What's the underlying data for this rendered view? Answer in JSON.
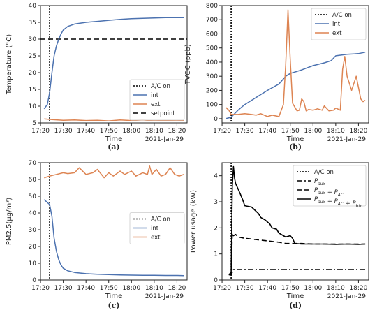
{
  "chart_data": [
    {
      "panel_caption": "(a)",
      "type": "line",
      "xlabel": "Time",
      "ylabel": "Temperature (°C)",
      "date_label": "2021-Jan-29",
      "xlim": [
        17.333,
        18.408
      ],
      "ylim": [
        5,
        40
      ],
      "xticks": [
        "17:20",
        "17:30",
        "17:40",
        "17:50",
        "18:00",
        "18:10",
        "18:20"
      ],
      "yticks": [
        "5",
        "10",
        "15",
        "20",
        "25",
        "30",
        "35",
        "40"
      ],
      "grid": false,
      "legend": {
        "position": "bottom-right",
        "entries": [
          "A/C on",
          "int",
          "ext",
          "setpoint"
        ]
      },
      "ac_on": 17.4,
      "hlines": [
        {
          "y": 30,
          "name": "setpoint",
          "color": "#000000",
          "style": "dashed"
        }
      ],
      "series": [
        {
          "name": "int",
          "color": "#4C72B0",
          "x": [
            17.36,
            17.383,
            17.4,
            17.417,
            17.433,
            17.45,
            17.467,
            17.483,
            17.5,
            17.533,
            17.583,
            17.667,
            17.75,
            17.833,
            17.917,
            18.0,
            18.083,
            18.167,
            18.25,
            18.333,
            18.383
          ],
          "y": [
            9.2,
            10.5,
            14,
            20,
            25,
            28,
            30,
            31.5,
            32.7,
            33.8,
            34.5,
            35,
            35.3,
            35.6,
            35.9,
            36.1,
            36.2,
            36.3,
            36.4,
            36.4,
            36.4
          ]
        },
        {
          "name": "ext",
          "color": "#DD8452",
          "x": [
            17.36,
            17.417,
            17.5,
            17.583,
            17.667,
            17.75,
            17.833,
            17.917,
            18.0,
            18.083,
            18.167,
            18.25,
            18.333,
            18.383
          ],
          "y": [
            6.2,
            6.0,
            5.8,
            5.9,
            5.7,
            5.8,
            5.6,
            5.9,
            5.7,
            5.9,
            5.6,
            5.8,
            5.6,
            5.8
          ]
        }
      ]
    },
    {
      "panel_caption": "(b)",
      "type": "line",
      "xlabel": "Time",
      "ylabel": "TVOC (ppb)",
      "date_label": "2021-Jan-29",
      "xlim": [
        17.333,
        18.408
      ],
      "ylim": [
        -30,
        800
      ],
      "xticks": [
        "17:20",
        "17:30",
        "17:40",
        "17:50",
        "18:00",
        "18:10",
        "18:20"
      ],
      "yticks": [
        "0",
        "100",
        "200",
        "300",
        "400",
        "500",
        "600",
        "700",
        "800"
      ],
      "grid": false,
      "legend": {
        "position": "top-right",
        "entries": [
          "A/C on",
          "int",
          "ext"
        ]
      },
      "ac_on": 17.4,
      "hlines": [],
      "series": [
        {
          "name": "int",
          "color": "#4C72B0",
          "x": [
            17.36,
            17.4,
            17.45,
            17.5,
            17.583,
            17.667,
            17.75,
            17.8,
            17.833,
            17.917,
            18.0,
            18.083,
            18.133,
            18.167,
            18.25,
            18.333,
            18.383
          ],
          "y": [
            0,
            10,
            60,
            100,
            150,
            200,
            245,
            300,
            320,
            345,
            375,
            395,
            410,
            445,
            455,
            460,
            470
          ]
        },
        {
          "name": "ext",
          "color": "#DD8452",
          "x": [
            17.36,
            17.383,
            17.4,
            17.45,
            17.5,
            17.55,
            17.583,
            17.617,
            17.667,
            17.7,
            17.75,
            17.783,
            17.8,
            17.817,
            17.833,
            17.85,
            17.883,
            17.9,
            17.917,
            17.933,
            17.95,
            17.967,
            18.0,
            18.033,
            18.067,
            18.083,
            18.117,
            18.15,
            18.167,
            18.2,
            18.217,
            18.233,
            18.25,
            18.283,
            18.317,
            18.35,
            18.367,
            18.383
          ],
          "y": [
            80,
            60,
            30,
            30,
            35,
            30,
            25,
            35,
            15,
            25,
            15,
            100,
            380,
            770,
            420,
            110,
            55,
            60,
            140,
            120,
            55,
            65,
            60,
            70,
            60,
            90,
            55,
            60,
            75,
            60,
            350,
            440,
            300,
            200,
            300,
            140,
            120,
            130
          ]
        }
      ]
    },
    {
      "panel_caption": "(c)",
      "type": "line",
      "xlabel": "Time",
      "ylabel": "PM2.5(μg/m³)",
      "date_label": "2021-Jan-29",
      "xlim": [
        17.333,
        18.408
      ],
      "ylim": [
        0,
        70
      ],
      "xticks": [
        "17:20",
        "17:30",
        "17:40",
        "17:50",
        "18:00",
        "18:10",
        "18:20"
      ],
      "yticks": [
        "0",
        "10",
        "20",
        "30",
        "40",
        "50",
        "60",
        "70"
      ],
      "grid": false,
      "legend": {
        "position": "center-right",
        "entries": [
          "A/C on",
          "int",
          "ext"
        ]
      },
      "ac_on": 17.4,
      "hlines": [],
      "series": [
        {
          "name": "int",
          "color": "#4C72B0",
          "x": [
            17.36,
            17.4,
            17.417,
            17.433,
            17.45,
            17.467,
            17.483,
            17.5,
            17.533,
            17.583,
            17.667,
            17.75,
            17.833,
            17.917,
            18.0,
            18.083,
            18.167,
            18.25,
            18.333,
            18.383
          ],
          "y": [
            48,
            45,
            38,
            25,
            17,
            12,
            9,
            7,
            5.5,
            4.5,
            3.8,
            3.4,
            3.2,
            3.0,
            2.9,
            2.8,
            2.8,
            2.7,
            2.7,
            2.6
          ]
        },
        {
          "name": "ext",
          "color": "#DD8452",
          "x": [
            17.36,
            17.4,
            17.45,
            17.5,
            17.533,
            17.583,
            17.617,
            17.667,
            17.717,
            17.75,
            17.8,
            17.833,
            17.867,
            17.917,
            17.95,
            18.0,
            18.033,
            18.083,
            18.117,
            18.133,
            18.15,
            18.183,
            18.217,
            18.25,
            18.283,
            18.317,
            18.35,
            18.383
          ],
          "y": [
            61,
            62,
            63,
            64,
            63.5,
            64,
            67,
            63,
            64,
            66,
            61,
            64,
            62,
            65,
            63,
            65,
            62,
            64,
            63,
            68,
            63,
            66,
            62,
            63,
            67,
            63,
            62,
            63
          ]
        }
      ]
    },
    {
      "panel_caption": "(d)",
      "type": "line",
      "xlabel": "Time",
      "ylabel": "Power usage (kW)",
      "date_label": "2021-Jan-29",
      "xlim": [
        17.333,
        18.408
      ],
      "ylim": [
        0,
        4.5
      ],
      "xticks": [
        "17:20",
        "17:30",
        "17:40",
        "17:50",
        "18:00",
        "18:10",
        "18:20"
      ],
      "yticks": [
        "0",
        "1",
        "2",
        "3",
        "4"
      ],
      "grid": false,
      "legend": {
        "position": "top-right",
        "entries": [
          "A/C on",
          "P_aux",
          "P_aux + P_AC",
          "P_aux + P_AC + P_htr"
        ]
      },
      "ac_on": 17.4,
      "hlines": [],
      "series": [
        {
          "name": "P_aux",
          "color": "#000000",
          "style": "dashdot",
          "x": [
            17.383,
            17.4,
            17.417,
            17.45,
            17.6,
            17.8,
            18.0,
            18.2,
            18.383
          ],
          "y": [
            0.2,
            0.2,
            0.4,
            0.4,
            0.4,
            0.4,
            0.4,
            0.4,
            0.4
          ]
        },
        {
          "name": "P_aux + P_AC",
          "color": "#000000",
          "style": "dashed",
          "x": [
            17.383,
            17.4,
            17.408,
            17.417,
            17.433,
            17.45,
            17.5,
            17.583,
            17.667,
            17.75,
            17.8,
            17.833,
            17.917,
            18.0,
            18.083,
            18.167,
            18.25,
            18.333,
            18.383
          ],
          "y": [
            0.2,
            0.2,
            1.8,
            1.7,
            1.75,
            1.65,
            1.6,
            1.55,
            1.5,
            1.45,
            1.4,
            1.4,
            1.4,
            1.38,
            1.38,
            1.38,
            1.38,
            1.38,
            1.38
          ]
        },
        {
          "name": "P_aux + P_AC + P_htr",
          "color": "#000000",
          "style": "solid",
          "x": [
            17.383,
            17.4,
            17.408,
            17.417,
            17.425,
            17.433,
            17.45,
            17.467,
            17.483,
            17.5,
            17.55,
            17.6,
            17.617,
            17.65,
            17.683,
            17.7,
            17.733,
            17.75,
            17.783,
            17.8,
            17.833,
            17.85,
            17.867,
            17.917,
            18.0,
            18.083,
            18.167,
            18.25,
            18.333,
            18.383
          ],
          "y": [
            0.2,
            0.3,
            3.6,
            4.35,
            3.9,
            3.7,
            3.5,
            3.3,
            3.1,
            2.85,
            2.8,
            2.55,
            2.4,
            2.3,
            2.15,
            2.0,
            1.95,
            1.8,
            1.7,
            1.65,
            1.7,
            1.6,
            1.4,
            1.38,
            1.38,
            1.38,
            1.37,
            1.38,
            1.37,
            1.38
          ]
        }
      ]
    }
  ]
}
